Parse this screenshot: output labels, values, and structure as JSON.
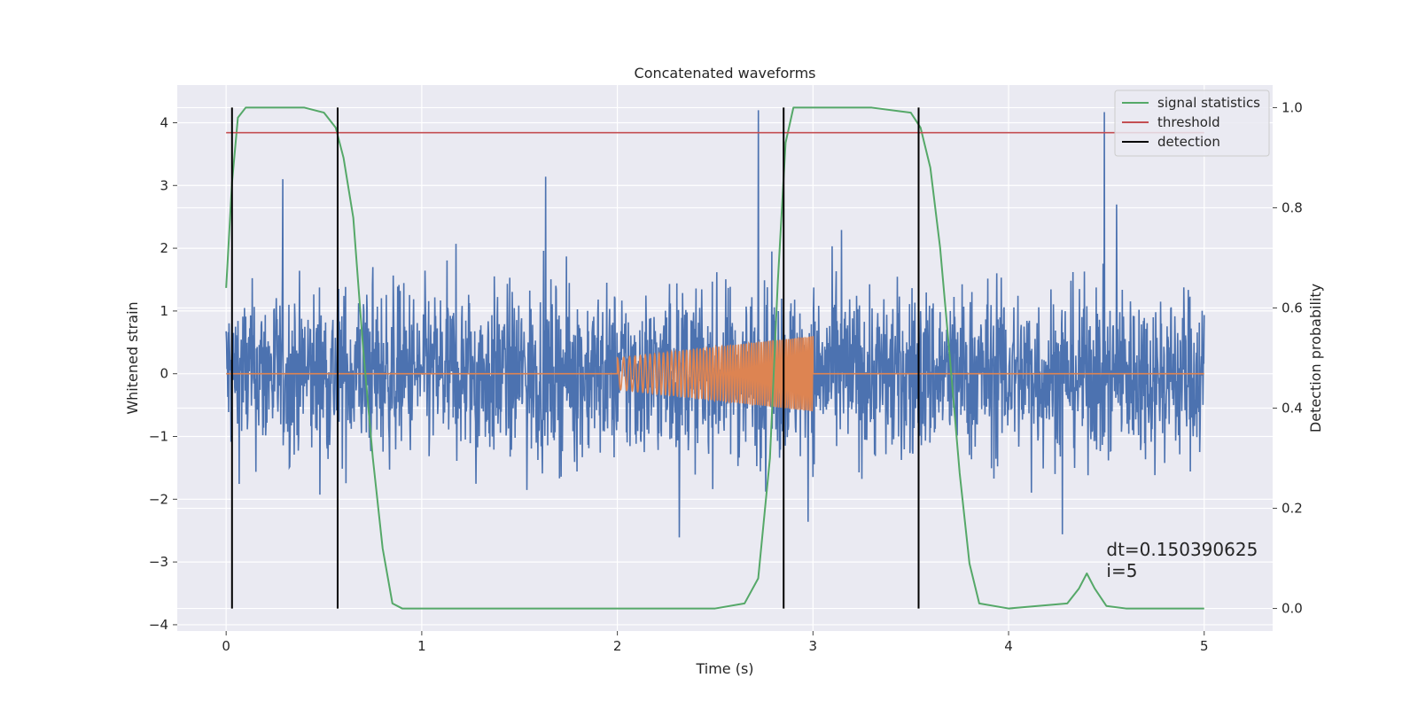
{
  "chart_data": {
    "type": "line",
    "title": "Concatenated waveforms",
    "xlabel": "Time (s)",
    "ylabel": "Whitened strain",
    "ylabel_right": "Detection probability",
    "xlim": [
      -0.25,
      5.35
    ],
    "ylim_left": [
      -4.1,
      4.6
    ],
    "ylim_right": [
      -0.045,
      1.045
    ],
    "x_ticks": [
      0,
      1,
      2,
      3,
      4,
      5
    ],
    "x_tick_labels": [
      "0",
      "1",
      "2",
      "3",
      "4",
      "5"
    ],
    "y_left_ticks": [
      -4,
      -3,
      -2,
      -1,
      0,
      1,
      2,
      3,
      4
    ],
    "y_left_tick_labels": [
      "−4",
      "−3",
      "−2",
      "−1",
      "0",
      "1",
      "2",
      "3",
      "4"
    ],
    "y_right_ticks": [
      0.0,
      0.2,
      0.4,
      0.6,
      0.8,
      1.0
    ],
    "y_right_tick_labels": [
      "0.0",
      "0.2",
      "0.4",
      "0.6",
      "0.8",
      "1.0"
    ],
    "grid": true,
    "legend_position": "top-right",
    "colors": {
      "strain": "#4c72b0",
      "template": "#dd8452",
      "signal_statistics": "#55a868",
      "threshold": "#c44e52",
      "detection": "#000000",
      "background": "#eaeaf2",
      "grid": "#ffffff"
    },
    "strain": {
      "x_range": [
        0,
        5
      ],
      "envelope_typical": 1.0,
      "peaks_max": 4.2,
      "peak_at": 2.72,
      "description_only_for_render": "noise"
    },
    "template_waveform": {
      "x_start": 2.0,
      "x_end": 3.0,
      "amp_start": 0.25,
      "amp_end": 0.6,
      "flat_elsewhere": 0
    },
    "series": [
      {
        "name": "signal statistics",
        "axis": "right",
        "x": [
          0.0,
          0.03,
          0.06,
          0.1,
          0.2,
          0.4,
          0.5,
          0.56,
          0.6,
          0.65,
          0.7,
          0.75,
          0.8,
          0.85,
          0.9,
          1.0,
          2.0,
          2.5,
          2.65,
          2.72,
          2.78,
          2.82,
          2.86,
          2.9,
          3.0,
          3.3,
          3.5,
          3.55,
          3.6,
          3.65,
          3.7,
          3.75,
          3.8,
          3.85,
          4.0,
          4.3,
          4.36,
          4.4,
          4.44,
          4.5,
          4.6,
          5.0
        ],
        "y": [
          0.64,
          0.85,
          0.98,
          1.0,
          1.0,
          1.0,
          0.99,
          0.96,
          0.9,
          0.78,
          0.52,
          0.3,
          0.12,
          0.01,
          0.0,
          0.0,
          0.0,
          0.0,
          0.01,
          0.06,
          0.3,
          0.65,
          0.93,
          1.0,
          1.0,
          1.0,
          0.99,
          0.96,
          0.88,
          0.72,
          0.5,
          0.27,
          0.09,
          0.01,
          0.0,
          0.01,
          0.04,
          0.07,
          0.04,
          0.005,
          0.0,
          0.0
        ]
      },
      {
        "name": "threshold",
        "axis": "right",
        "x": [
          0.0,
          5.0
        ],
        "y": [
          0.95,
          0.95
        ]
      },
      {
        "name": "detection",
        "axis": "right",
        "x": [
          0.03,
          0.57,
          2.85,
          3.54
        ],
        "y_range": [
          0.0,
          1.0
        ]
      }
    ],
    "annotations": [
      {
        "text": "dt=0.150390625",
        "x": 4.5,
        "y_right": 0.105
      },
      {
        "text": " i=5",
        "x": 4.5,
        "y_right": 0.063
      }
    ]
  }
}
